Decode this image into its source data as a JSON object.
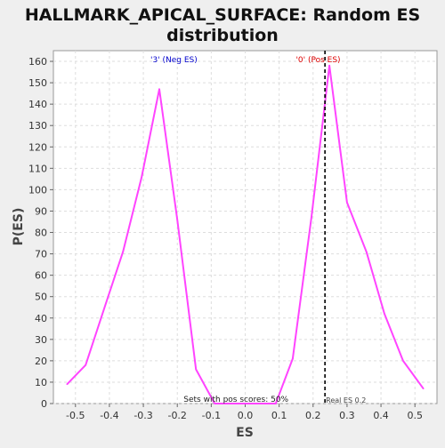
{
  "chart_data": {
    "type": "line",
    "title_line1": "HALLMARK_APICAL_SURFACE: Random ES",
    "title_line2": "distribution",
    "xlabel": "ES",
    "ylabel": "P(ES)",
    "xlim": [
      -0.565,
      0.565
    ],
    "ylim": [
      0,
      165
    ],
    "xticks": [
      -0.5,
      -0.4,
      -0.3,
      -0.2,
      -0.1,
      0.0,
      0.1,
      0.2,
      0.3,
      0.4,
      0.5
    ],
    "xtick_labels": [
      "-0.5",
      "-0.4",
      "-0.3",
      "-0.2",
      "-0.1",
      "0.0",
      "0.1",
      "0.2",
      "0.3",
      "0.4",
      "0.5"
    ],
    "yticks": [
      0,
      10,
      20,
      30,
      40,
      50,
      60,
      70,
      80,
      90,
      100,
      110,
      120,
      130,
      140,
      150,
      160
    ],
    "ytick_labels": [
      "0",
      "10",
      "20",
      "30",
      "40",
      "50",
      "60",
      "70",
      "80",
      "90",
      "100",
      "110",
      "120",
      "130",
      "140",
      "150",
      "160"
    ],
    "grid": true,
    "series": [
      {
        "color": "#ff44ff",
        "points": [
          [
            -0.525,
            9
          ],
          [
            -0.47,
            18
          ],
          [
            -0.41,
            47
          ],
          [
            -0.36,
            71
          ],
          [
            -0.305,
            106
          ],
          [
            -0.253,
            147
          ],
          [
            -0.2,
            86
          ],
          [
            -0.145,
            16
          ],
          [
            -0.09,
            0
          ],
          [
            0.09,
            0
          ],
          [
            0.14,
            21
          ],
          [
            0.195,
            87
          ],
          [
            0.248,
            158
          ],
          [
            0.3,
            94
          ],
          [
            0.357,
            71
          ],
          [
            0.41,
            42
          ],
          [
            0.465,
            20
          ],
          [
            0.525,
            7
          ]
        ]
      }
    ],
    "real_es": {
      "value": 0.235,
      "label": "Real ES 0.2"
    },
    "annotations": {
      "neg_label": "'3' (Neg ES)",
      "neg_color": "#0000cc",
      "pos_label": "'0' (Pos ES)",
      "pos_color": "#dd0000",
      "sets_label": "Sets with pos scores: 50%"
    }
  }
}
